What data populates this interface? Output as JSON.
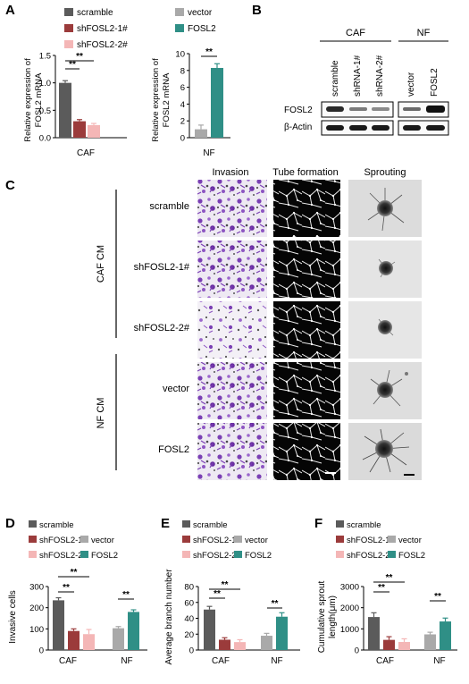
{
  "panels": {
    "A": "A",
    "B": "B",
    "C": "C",
    "D": "D",
    "E": "E",
    "F": "F"
  },
  "colors": {
    "scramble": "#5b5b5b",
    "sh1": "#9b3b3b",
    "sh2": "#f4b6b6",
    "vector": "#a9a9a9",
    "fosl2": "#2f8f86"
  },
  "panelA": {
    "left": {
      "legend": [
        "scramble",
        "shFOSL2-1#",
        "shFOSL2-2#"
      ],
      "ylabel_line1": "Relative expression of",
      "ylabel_line2": "FOSL2 mRNA",
      "xlabel": "CAF",
      "sig": [
        "**",
        "**"
      ]
    },
    "right": {
      "legend": [
        "vector",
        "FOSL2"
      ],
      "ylabel_line1": "Relative expression of",
      "ylabel_line2": "FOSL2 mRNA",
      "xlabel": "NF",
      "sig": [
        "**"
      ]
    }
  },
  "panelB": {
    "group_caf": "CAF",
    "group_nf": "NF",
    "lanes": [
      "scramble",
      "shRNA-1#",
      "shRNA-2#",
      "vector",
      "FOSL2"
    ],
    "rows": [
      "FOSL2",
      "β-Actin"
    ]
  },
  "panelC": {
    "columns": [
      "Invasion",
      "Tube formation",
      "Sprouting"
    ],
    "row_labels": [
      "scramble",
      "shFOSL2-1#",
      "shFOSL2-2#",
      "vector",
      "FOSL2"
    ],
    "group_caf": "CAF CM",
    "group_nf": "NF CM"
  },
  "panelD": {
    "ylabel": "Invasive cells",
    "sig": [
      "**",
      "**",
      "**"
    ]
  },
  "panelE": {
    "ylabel": "Average branch number",
    "sig": [
      "**",
      "**",
      "**"
    ]
  },
  "panelF": {
    "ylabel_line1": "Cumulative sprout",
    "ylabel_line2": "length(μm)",
    "sig": [
      "**",
      "**",
      "**"
    ]
  },
  "legendDEF": [
    "scramble",
    "shFOSL2-1#",
    "shFOSL2-2#",
    "vector",
    "FOSL2"
  ],
  "chart_data": [
    {
      "type": "bar",
      "panel": "A-left",
      "categories": [
        "CAF"
      ],
      "series": [
        {
          "name": "scramble",
          "values": [
            1.0
          ],
          "err": [
            0.04
          ]
        },
        {
          "name": "shFOSL2-1#",
          "values": [
            0.3
          ],
          "err": [
            0.03
          ]
        },
        {
          "name": "shFOSL2-2#",
          "values": [
            0.23
          ],
          "err": [
            0.03
          ]
        }
      ],
      "ylim": [
        0,
        1.5
      ],
      "yticks": [
        0.0,
        0.5,
        1.0,
        1.5
      ],
      "ytick_labels": [
        "0.0",
        "0.5",
        "1.0",
        "1.5"
      ]
    },
    {
      "type": "bar",
      "panel": "A-right",
      "categories": [
        "NF"
      ],
      "series": [
        {
          "name": "vector",
          "values": [
            1.0
          ],
          "err": [
            0.5
          ]
        },
        {
          "name": "FOSL2",
          "values": [
            8.3
          ],
          "err": [
            0.5
          ]
        }
      ],
      "ylim": [
        0,
        10
      ],
      "yticks": [
        0,
        2,
        4,
        6,
        8,
        10
      ],
      "ytick_labels": [
        "0",
        "2",
        "4",
        "6",
        "8",
        "10"
      ]
    },
    {
      "type": "bar",
      "panel": "D",
      "categories": [
        "CAF",
        "NF"
      ],
      "series": [
        {
          "name": "scramble",
          "values": [
            235,
            null
          ],
          "err": [
            12,
            null
          ]
        },
        {
          "name": "shFOSL2-1#",
          "values": [
            90,
            null
          ],
          "err": [
            10,
            null
          ]
        },
        {
          "name": "shFOSL2-2#",
          "values": [
            75,
            null
          ],
          "err": [
            22,
            null
          ]
        },
        {
          "name": "vector",
          "values": [
            null,
            103
          ],
          "err": [
            null,
            8
          ]
        },
        {
          "name": "FOSL2",
          "values": [
            null,
            180
          ],
          "err": [
            null,
            10
          ]
        }
      ],
      "ylim": [
        0,
        300
      ],
      "yticks": [
        0,
        100,
        200,
        300
      ],
      "ytick_labels": [
        "0",
        "100",
        "200",
        "300"
      ]
    },
    {
      "type": "bar",
      "panel": "E",
      "categories": [
        "CAF",
        "NF"
      ],
      "series": [
        {
          "name": "scramble",
          "values": [
            51,
            null
          ],
          "err": [
            4,
            null
          ]
        },
        {
          "name": "shFOSL2-1#",
          "values": [
            13,
            null
          ],
          "err": [
            2.5,
            null
          ]
        },
        {
          "name": "shFOSL2-2#",
          "values": [
            10,
            null
          ],
          "err": [
            3,
            null
          ]
        },
        {
          "name": "vector",
          "values": [
            null,
            18
          ],
          "err": [
            null,
            3
          ]
        },
        {
          "name": "FOSL2",
          "values": [
            null,
            42
          ],
          "err": [
            null,
            5
          ]
        }
      ],
      "ylim": [
        0,
        80
      ],
      "yticks": [
        0,
        20,
        40,
        60,
        80
      ],
      "ytick_labels": [
        "0",
        "20",
        "40",
        "60",
        "80"
      ]
    },
    {
      "type": "bar",
      "panel": "F",
      "categories": [
        "CAF",
        "NF"
      ],
      "series": [
        {
          "name": "scramble",
          "values": [
            1560,
            null
          ],
          "err": [
            200,
            null
          ]
        },
        {
          "name": "shFOSL2-1#",
          "values": [
            480,
            null
          ],
          "err": [
            150,
            null
          ]
        },
        {
          "name": "shFOSL2-2#",
          "values": [
            380,
            null
          ],
          "err": [
            150,
            null
          ]
        },
        {
          "name": "vector",
          "values": [
            null,
            740
          ],
          "err": [
            null,
            100
          ]
        },
        {
          "name": "FOSL2",
          "values": [
            null,
            1350
          ],
          "err": [
            null,
            160
          ]
        }
      ],
      "ylim": [
        0,
        3000
      ],
      "yticks": [
        0,
        1000,
        2000,
        3000
      ],
      "ytick_labels": [
        "0",
        "1000",
        "2000",
        "3000"
      ]
    }
  ]
}
